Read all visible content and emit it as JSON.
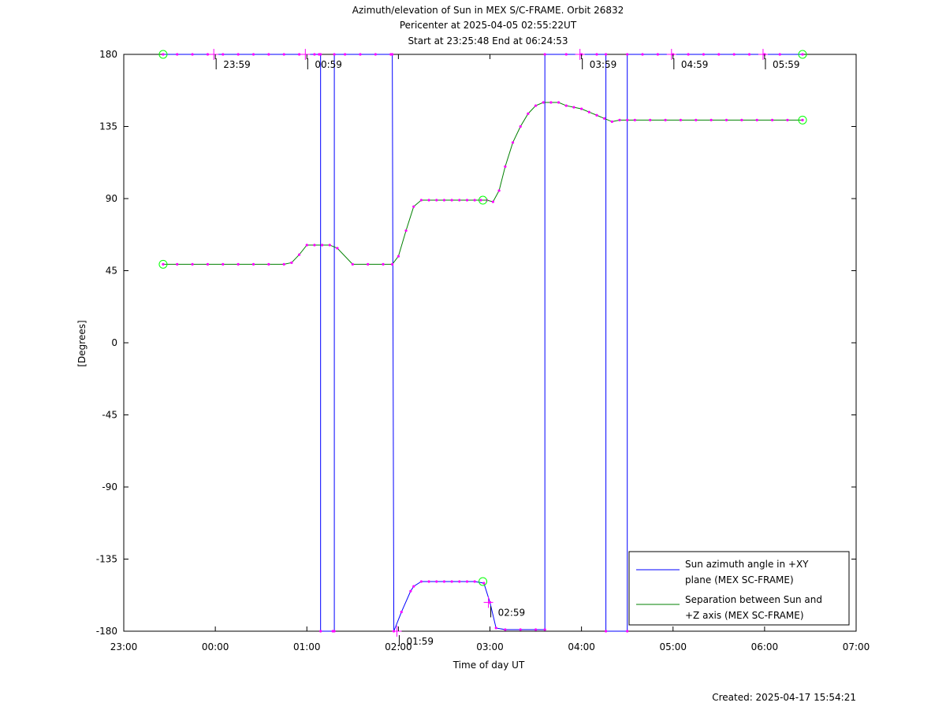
{
  "colors": {
    "azimuth": "#0000ff",
    "separation": "#008000",
    "marker": "#ff00ff",
    "endpoint": "#00ff00",
    "axis": "#000000",
    "background": "#ffffff"
  },
  "chart_data": {
    "type": "line",
    "title_lines": [
      "Azimuth/elevation of Sun in MEX S/C-FRAME.  Orbit 26832",
      "Pericenter at 2025-04-05 02:55:22UT",
      "Start at 23:25:48 End at 06:24:53"
    ],
    "xlabel": "Time of day UT",
    "ylabel": "[Degrees]",
    "xlim": [
      "23:00",
      "07:00"
    ],
    "ylim": [
      -180,
      180
    ],
    "x_ticks": [
      "23:00",
      "00:00",
      "01:00",
      "02:00",
      "03:00",
      "04:00",
      "05:00",
      "06:00",
      "07:00"
    ],
    "y_ticks": [
      180,
      135,
      90,
      45,
      0,
      -45,
      -90,
      -135,
      -180
    ],
    "grid": false,
    "legend_position": "bottom-right",
    "footer": "Created: 2025-04-17 15:54:21",
    "series": [
      {
        "name": "Sun azimuth angle in +XY plane (MEX SC-FRAME)",
        "legend_lines": [
          "Sun azimuth angle in +XY",
          "plane (MEX SC-FRAME)"
        ],
        "color": "#0000ff",
        "x": [
          "23:25:48",
          "23:35",
          "23:45",
          "23:55",
          "00:05",
          "00:15",
          "00:25",
          "00:35",
          "00:45",
          "00:55",
          "01:05",
          "01:08",
          "01:09",
          "01:09",
          "01:17",
          "01:18",
          "01:18",
          "01:25",
          "01:35",
          "01:45",
          "01:55",
          "01:56",
          "01:57",
          "02:02",
          "02:08",
          "02:10",
          "02:15",
          "02:20",
          "02:25",
          "02:30",
          "02:35",
          "02:40",
          "02:45",
          "02:50",
          "02:56",
          "03:00",
          "03:04",
          "03:10",
          "03:20",
          "03:30",
          "03:36",
          "03:36",
          "03:50",
          "04:00",
          "04:10",
          "04:16",
          "04:16",
          "04:30",
          "04:30",
          "04:40",
          "04:50",
          "05:00",
          "05:10",
          "05:20",
          "05:30",
          "05:40",
          "05:50",
          "06:00",
          "06:10",
          "06:24:53"
        ],
        "y": [
          180,
          180,
          180,
          180,
          180,
          180,
          180,
          180,
          180,
          180,
          180,
          180,
          180,
          -180,
          -180,
          -180,
          180,
          180,
          180,
          180,
          180,
          180,
          -180,
          -168,
          -155,
          -152,
          -149,
          -149,
          -149,
          -149,
          -149,
          -149,
          -149,
          -149,
          -150,
          -162,
          -178,
          -179,
          -179,
          -179,
          -179,
          180,
          180,
          180,
          180,
          180,
          -180,
          -180,
          180,
          180,
          180,
          180,
          180,
          180,
          180,
          180,
          180,
          180,
          180,
          180
        ]
      },
      {
        "name": "Separation between Sun and +Z axis (MEX SC-FRAME)",
        "legend_lines": [
          "Separation between Sun and",
          "+Z axis (MEX SC-FRAME)"
        ],
        "color": "#008000",
        "x": [
          "23:25:48",
          "23:35",
          "23:45",
          "23:55",
          "00:05",
          "00:15",
          "00:25",
          "00:35",
          "00:45",
          "00:50",
          "00:55",
          "01:00",
          "01:05",
          "01:10",
          "01:15",
          "01:20",
          "01:30",
          "01:40",
          "01:50",
          "01:56",
          "02:00",
          "02:05",
          "02:10",
          "02:15",
          "02:20",
          "02:25",
          "02:30",
          "02:35",
          "02:40",
          "02:45",
          "02:50",
          "02:54",
          "02:58",
          "03:02",
          "03:06",
          "03:10",
          "03:15",
          "03:20",
          "03:25",
          "03:30",
          "03:35",
          "03:40",
          "03:45",
          "03:50",
          "03:55",
          "04:00",
          "04:05",
          "04:10",
          "04:15",
          "04:20",
          "04:25",
          "04:30",
          "04:35",
          "04:45",
          "04:55",
          "05:05",
          "05:15",
          "05:25",
          "05:35",
          "05:45",
          "05:55",
          "06:05",
          "06:15",
          "06:24:53"
        ],
        "y": [
          49,
          49,
          49,
          49,
          49,
          49,
          49,
          49,
          49,
          50,
          55,
          61,
          61,
          61,
          61,
          59,
          49,
          49,
          49,
          49,
          54,
          70,
          85,
          89,
          89,
          89,
          89,
          89,
          89,
          89,
          89,
          89,
          89,
          88,
          95,
          110,
          125,
          135,
          143,
          148,
          150,
          150,
          150,
          148,
          147,
          146,
          144,
          142,
          140,
          138,
          139,
          139,
          139,
          139,
          139,
          139,
          139,
          139,
          139,
          139,
          139,
          139,
          139,
          139
        ]
      }
    ],
    "annotations": [
      {
        "label": "23:59",
        "time": "23:59",
        "y": 180
      },
      {
        "label": "00:59",
        "time": "00:59",
        "y": 180
      },
      {
        "label": "01:59",
        "time": "01:59",
        "y": -180
      },
      {
        "label": "02:59",
        "time": "02:59",
        "y": -162
      },
      {
        "label": "03:59",
        "time": "03:59",
        "y": 180
      },
      {
        "label": "04:59",
        "time": "04:59",
        "y": 180
      },
      {
        "label": "05:59",
        "time": "05:59",
        "y": 180
      }
    ],
    "pericenter_markers": [
      {
        "time": "02:55:22",
        "y": 89
      },
      {
        "time": "02:55:22",
        "y": -149
      }
    ]
  }
}
